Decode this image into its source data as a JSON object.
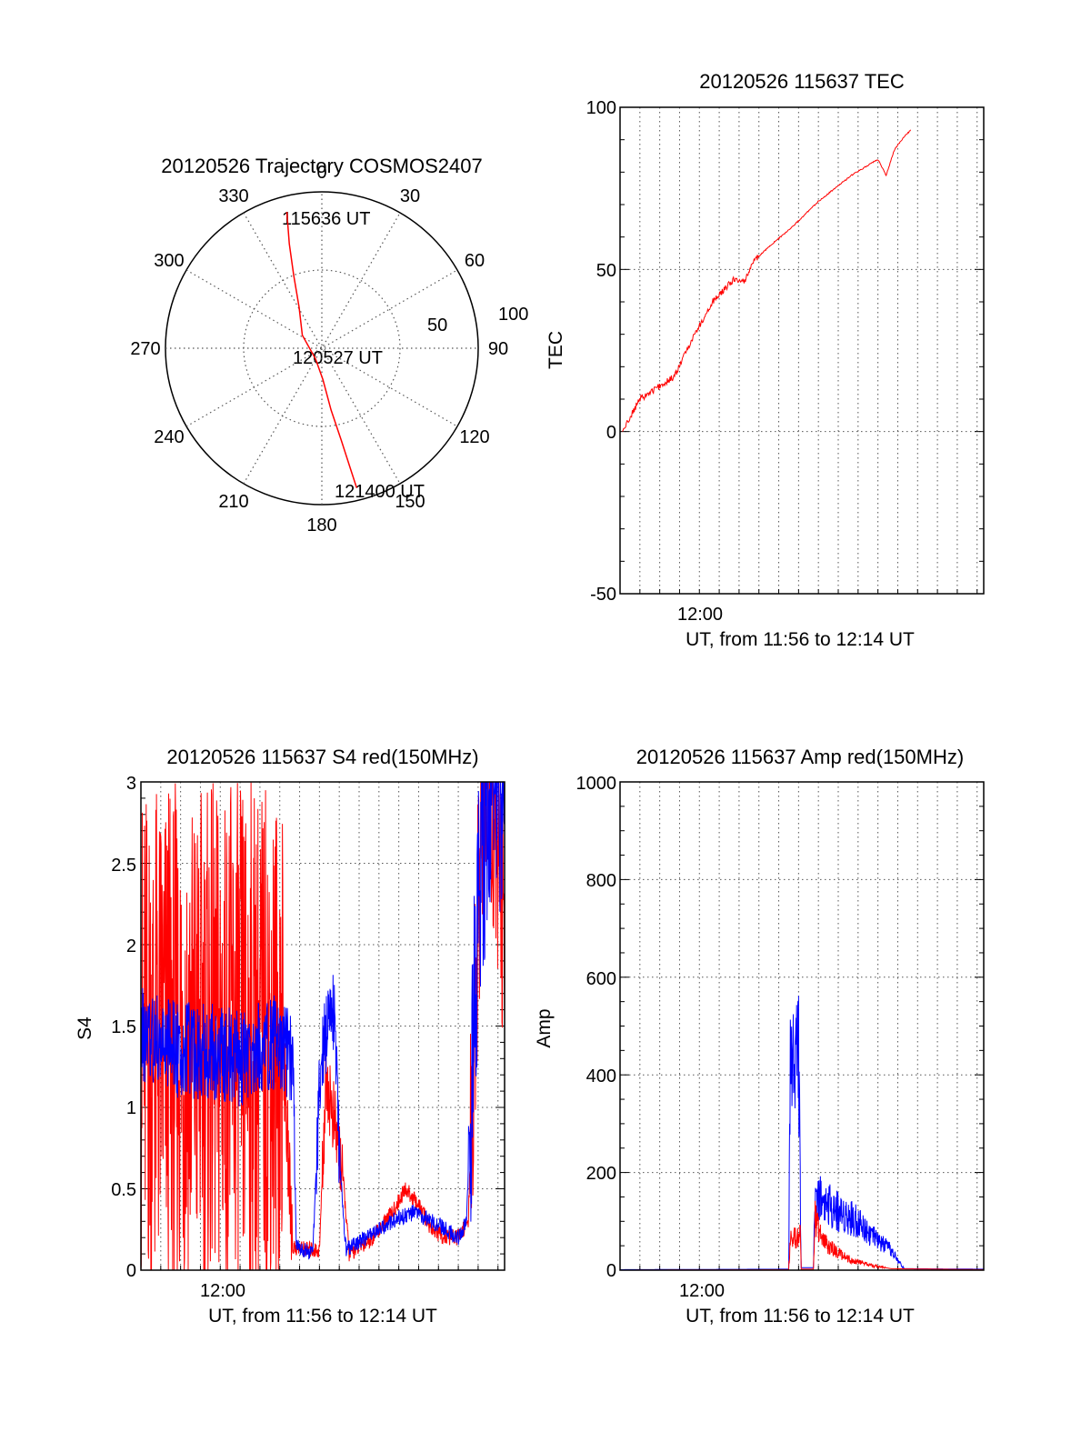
{
  "colors": {
    "red": "#ff0000",
    "blue": "#0000ff",
    "axis": "#000000",
    "grid": "#555555",
    "background": "#ffffff"
  },
  "chart_data": [
    {
      "id": "trajectory",
      "type": "polar",
      "title": "20120526 Trajectory COSMOS2407",
      "radial_ticks": [
        "50",
        "100"
      ],
      "azimuth_labels": [
        "0",
        "30",
        "60",
        "90",
        "120",
        "150",
        "180",
        "210",
        "240",
        "270",
        "300",
        "330"
      ],
      "azimuths_deg": [
        0,
        30,
        60,
        90,
        120,
        150,
        180,
        210,
        240,
        270,
        300,
        330
      ],
      "rlim": [
        0,
        100
      ],
      "grid": true,
      "annotations": {
        "start": "115636 UT",
        "mid": "120527 UT",
        "end": "121400 UT"
      },
      "series": [
        {
          "color": "red",
          "points_az_r": [
            [
              345.6,
              90
            ],
            [
              342.7,
              70
            ],
            [
              338.9,
              50
            ],
            [
              331.0,
              30
            ],
            [
              303.7,
              15
            ],
            [
              210.0,
              8
            ],
            [
              178.1,
              20
            ],
            [
              171.5,
              40
            ],
            [
              168.1,
              60
            ],
            [
              166.6,
              80
            ],
            [
              166.0,
              92
            ]
          ]
        }
      ]
    },
    {
      "id": "tec",
      "type": "line",
      "title": "20120526 115637 TEC",
      "xlabel": "UT, from 11:56 to 12:14 UT",
      "ylabel": "TEC",
      "x_tick_labels": [
        "12:00"
      ],
      "y_tick_labels": [
        "100",
        "50",
        "0",
        "-50"
      ],
      "xlim_min": [
        0,
        1100
      ],
      "ylim": [
        -50,
        100
      ],
      "grid": true,
      "series": [
        {
          "color": "red",
          "points": [
            [
              7,
              0
            ],
            [
              60,
              10
            ],
            [
              120,
              14
            ],
            [
              165,
              17
            ],
            [
              215,
              28
            ],
            [
              280,
              40
            ],
            [
              345,
              47
            ],
            [
              375,
              46
            ],
            [
              400,
              52
            ],
            [
              450,
              57
            ],
            [
              520,
              63
            ],
            [
              600,
              71
            ],
            [
              700,
              79
            ],
            [
              780,
              84
            ],
            [
              795,
              81
            ],
            [
              805,
              79
            ],
            [
              830,
              87
            ],
            [
              860,
              91
            ],
            [
              880,
              93
            ]
          ]
        }
      ]
    },
    {
      "id": "s4",
      "type": "line",
      "title": "20120526 115637 S4 red(150MHz)",
      "xlabel": "UT, from 11:56 to 12:14 UT",
      "ylabel": "S4",
      "x_tick_labels": [
        "12:00"
      ],
      "y_tick_labels": [
        "3",
        "2.5",
        "2",
        "1.5",
        "1",
        "0.5",
        "0"
      ],
      "xlim_min": [
        0,
        1100
      ],
      "ylim": [
        0,
        3
      ],
      "grid": true,
      "series": [
        {
          "color": "red",
          "points": [
            [
              0,
              1.4
            ],
            [
              430,
              1.4
            ],
            [
              440,
              0.9
            ],
            [
              460,
              0.14
            ],
            [
              540,
              0.12
            ],
            [
              560,
              1.2
            ],
            [
              610,
              0.6
            ],
            [
              630,
              0.1
            ],
            [
              700,
              0.2
            ],
            [
              760,
              0.35
            ],
            [
              800,
              0.5
            ],
            [
              840,
              0.4
            ],
            [
              880,
              0.25
            ],
            [
              920,
              0.2
            ],
            [
              960,
              0.2
            ],
            [
              990,
              0.3
            ],
            [
              1010,
              1.5
            ],
            [
              1030,
              2.8
            ],
            [
              1060,
              3.0
            ],
            [
              1100,
              2.0
            ]
          ]
        },
        {
          "color": "blue",
          "points": [
            [
              0,
              1.45
            ],
            [
              110,
              1.35
            ],
            [
              200,
              1.35
            ],
            [
              300,
              1.3
            ],
            [
              400,
              1.4
            ],
            [
              460,
              1.3
            ],
            [
              470,
              0.15
            ],
            [
              520,
              0.1
            ],
            [
              545,
              1.35
            ],
            [
              585,
              1.6
            ],
            [
              600,
              0.7
            ],
            [
              620,
              0.13
            ],
            [
              680,
              0.2
            ],
            [
              760,
              0.3
            ],
            [
              820,
              0.35
            ],
            [
              860,
              0.32
            ],
            [
              900,
              0.28
            ],
            [
              960,
              0.2
            ],
            [
              985,
              0.3
            ],
            [
              1000,
              1.2
            ],
            [
              1030,
              2.6
            ],
            [
              1060,
              2.9
            ],
            [
              1100,
              3.0
            ]
          ]
        }
      ]
    },
    {
      "id": "amp",
      "type": "line",
      "title": "20120526 115637 Amp red(150MHz)",
      "xlabel": "UT, from 11:56 to 12:14 UT",
      "ylabel": "Amp",
      "x_tick_labels": [
        "12:00"
      ],
      "y_tick_labels": [
        "1000",
        "800",
        "600",
        "400",
        "200",
        "0"
      ],
      "xlim_min": [
        0,
        1100
      ],
      "ylim": [
        0,
        1000
      ],
      "grid": true,
      "series": [
        {
          "color": "blue",
          "points": [
            [
              0,
              1
            ],
            [
              500,
              2
            ],
            [
              510,
              2
            ],
            [
              515,
              430
            ],
            [
              540,
              460
            ],
            [
              548,
              5
            ],
            [
              585,
              5
            ],
            [
              590,
              160
            ],
            [
              620,
              140
            ],
            [
              660,
              120
            ],
            [
              720,
              100
            ],
            [
              780,
              60
            ],
            [
              820,
              40
            ],
            [
              840,
              20
            ],
            [
              860,
              3
            ],
            [
              1100,
              2
            ]
          ]
        },
        {
          "color": "red",
          "points": [
            [
              0,
              0
            ],
            [
              510,
              1
            ],
            [
              515,
              60
            ],
            [
              545,
              70
            ],
            [
              548,
              2
            ],
            [
              585,
              2
            ],
            [
              590,
              110
            ],
            [
              610,
              60
            ],
            [
              650,
              40
            ],
            [
              700,
              20
            ],
            [
              760,
              10
            ],
            [
              820,
              3
            ],
            [
              1100,
              1
            ]
          ]
        }
      ]
    }
  ]
}
